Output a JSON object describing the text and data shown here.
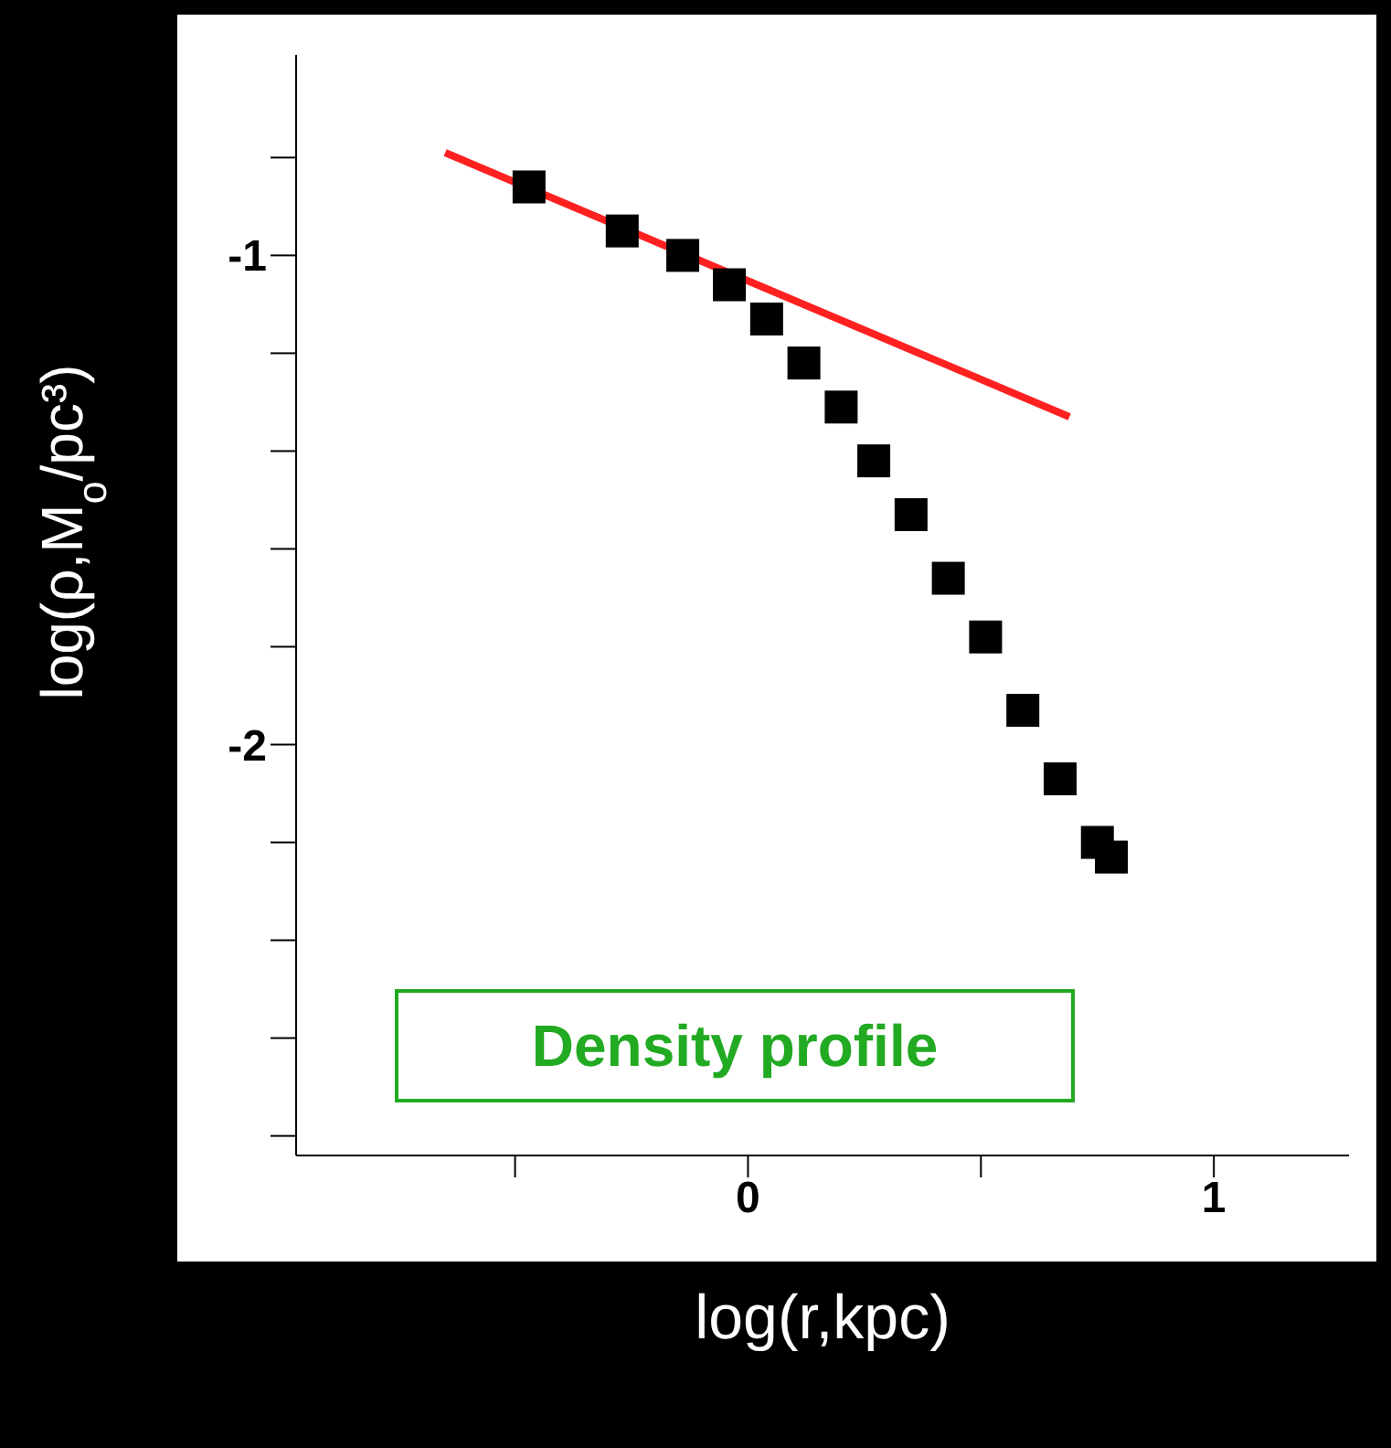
{
  "chart_data": {
    "type": "scatter",
    "xlabel": "log(r,kpc)",
    "ylabel": "log(ρ,M$_{o}$/pc³)",
    "xlim": [
      -0.97,
      1.29
    ],
    "ylim": [
      -2.84,
      -0.59
    ],
    "xticks": [
      {
        "value": -0.5,
        "label": null
      },
      0,
      {
        "value": 0.5,
        "label": null
      },
      1
    ],
    "yticks": [
      {
        "value": -0.8,
        "label": null
      },
      -1,
      {
        "value": -1.2,
        "label": null
      },
      {
        "value": -1.4,
        "label": null
      },
      {
        "value": -1.6,
        "label": null
      },
      {
        "value": -1.8,
        "label": null
      },
      -2,
      {
        "value": -2.2,
        "label": null
      },
      {
        "value": -2.4,
        "label": null
      },
      {
        "value": -2.6,
        "label": null
      },
      {
        "value": -2.8,
        "label": null
      }
    ],
    "grid": false,
    "marker": "square",
    "annotations": [
      "Density profile"
    ],
    "series": [
      {
        "type": "scatter",
        "color": "#000000",
        "x": [
          -0.47,
          -0.27,
          -0.14,
          -0.04,
          0.04,
          0.12,
          0.2,
          0.27,
          0.35,
          0.43,
          0.51,
          0.59,
          0.67,
          0.75,
          0.78
        ],
        "values": [
          -0.86,
          -0.95,
          -1.0,
          -1.06,
          -1.13,
          -1.22,
          -1.31,
          -1.42,
          -1.53,
          -1.66,
          -1.78,
          -1.93,
          -2.07,
          -2.2,
          -2.23
        ]
      },
      {
        "type": "line",
        "color": "#ff2020",
        "marker": "none",
        "x": [
          -0.65,
          0.69
        ],
        "values": [
          -0.79,
          -1.33
        ]
      }
    ]
  }
}
